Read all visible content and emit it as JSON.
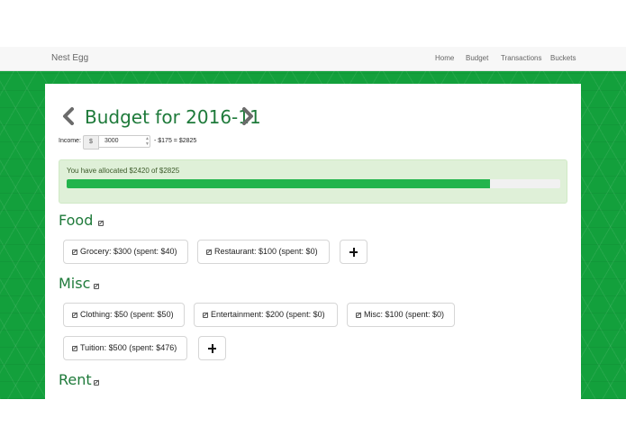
{
  "app": {
    "brand": "Nest Egg",
    "nav": [
      "Home",
      "Budget",
      "Transactions",
      "Buckets"
    ]
  },
  "budget": {
    "title": "Budget for 2016-11",
    "income_label": "Income:",
    "currency_symbol": "$",
    "income_value": "3000",
    "income_calc": "- $175 = $2825",
    "allocation_text": "You have allocated $2420 of $2825",
    "allocation_progress_percent": 85.7,
    "categories": [
      {
        "name": "Food",
        "buckets": [
          "Grocery: $300 (spent: $40)",
          "Restaurant: $100 (spent: $0)"
        ]
      },
      {
        "name": "Misc",
        "buckets": [
          "Clothing: $50 (spent: $50)",
          "Entertainment: $200 (spent: $0)",
          "Misc: $100 (spent: $0)",
          "Tuition: $500 (spent: $476)"
        ]
      },
      {
        "name": "Rent",
        "buckets": []
      }
    ]
  },
  "icons": {
    "prev": "chevron-left-icon",
    "next": "chevron-right-icon",
    "edit": "edit-icon",
    "add": "plus-icon",
    "spinner": "spinner-arrows-icon"
  },
  "colors": {
    "accent_green": "#1e7a3a",
    "background_green": "#13a03c",
    "progress_fill": "#22b44c",
    "alert_bg": "#dff0d8"
  }
}
